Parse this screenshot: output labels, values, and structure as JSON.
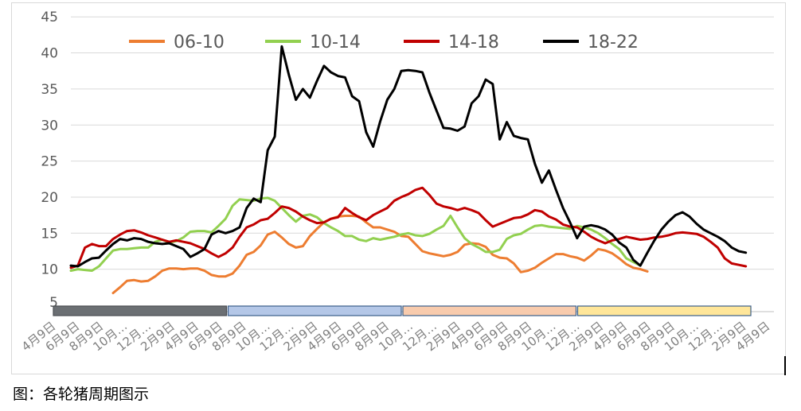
{
  "caption": "图：各轮猪周期图示",
  "chart_data": {
    "type": "line",
    "ylim": [
      5,
      45
    ],
    "y_ticks": [
      10,
      15,
      20,
      25,
      30,
      35,
      40,
      45
    ],
    "y_tick_labels": [
      "10",
      "15",
      "20",
      "25",
      "30",
      "35",
      "40",
      "45"
    ],
    "y_tick_partial": "5",
    "x_count": 101,
    "x_tick_labels": [
      "4月9日",
      "6月9日",
      "8月9日",
      "10月…",
      "12月…",
      "2月9日",
      "4月9日",
      "6月9日",
      "8月9日",
      "10月…",
      "12月…",
      "2月9日",
      "4月9日",
      "6月9日",
      "8月9日",
      "10月…",
      "12月…",
      "2月9日",
      "4月9日",
      "6月9日",
      "8月9日",
      "10月…",
      "12月…",
      "2月9日",
      "4月9日",
      "6月9日",
      "8月9日",
      "10月…",
      "12月…",
      "2月9日",
      "4月9日"
    ],
    "legend_position": "top",
    "colors": {
      "grid": "#d9d9d9",
      "axis": "#bfbfbf"
    },
    "bands": [
      {
        "from": 0,
        "to": 24,
        "fill": "#6b6f73",
        "stroke": "#4a4e52"
      },
      {
        "from": 24,
        "to": 48,
        "fill": "#b4c7e7",
        "stroke": "#3b5f8a"
      },
      {
        "from": 48,
        "to": 72,
        "fill": "#f8cbad",
        "stroke": "#3b5f8a"
      },
      {
        "from": 72,
        "to": 96,
        "fill": "#ffe699",
        "stroke": "#3b5f8a"
      }
    ],
    "series": [
      {
        "name": "06-10",
        "color": "#ed7d31",
        "start": 6,
        "values": [
          6.7,
          7.5,
          8.4,
          8.5,
          8.3,
          8.4,
          9,
          9.8,
          10.1,
          10.1,
          10,
          10.1,
          10.1,
          9.8,
          9.2,
          9,
          9,
          9.4,
          10.5,
          12,
          12.4,
          13.3,
          14.8,
          15.2,
          14.4,
          13.5,
          13,
          13.2,
          14.6,
          15.6,
          16.5,
          17,
          17.3,
          17.4,
          17.4,
          17.3,
          16.5,
          15.8,
          15.8,
          15.5,
          15.2,
          14.6,
          14.5,
          13.5,
          12.5,
          12.2,
          12,
          11.8,
          12,
          12.4,
          13.4,
          13.6,
          13.5,
          13.1,
          12,
          11.6,
          11.5,
          10.8,
          9.6,
          9.8,
          10.2,
          10.9,
          11.5,
          12.1,
          12.1,
          11.8,
          11.6,
          11.2,
          11.9,
          12.8,
          12.6,
          12.2,
          11.5,
          10.7,
          10.2,
          10,
          9.7
        ]
      },
      {
        "name": "10-14",
        "color": "#92d050",
        "start": 0,
        "values": [
          9.8,
          10,
          9.9,
          9.8,
          10.4,
          11.5,
          12.6,
          12.8,
          12.8,
          12.9,
          13,
          13,
          13.8,
          14.1,
          13.7,
          13.9,
          14.4,
          15.2,
          15.3,
          15.3,
          15.1,
          16,
          17,
          18.8,
          19.7,
          19.6,
          19.5,
          19.8,
          19.9,
          19.5,
          18.5,
          17.5,
          16.6,
          17.4,
          17.6,
          17.2,
          16.4,
          15.8,
          15.3,
          14.6,
          14.6,
          14.1,
          13.9,
          14.3,
          14.1,
          14.3,
          14.5,
          14.8,
          15,
          14.7,
          14.6,
          14.9,
          15.5,
          16,
          17.4,
          15.8,
          14.3,
          13.5,
          13,
          12.4,
          12.4,
          12.7,
          14.2,
          14.7,
          14.9,
          15.5,
          16,
          16.1,
          15.9,
          15.8,
          15.7,
          15.6,
          16,
          15.8,
          15.5,
          15,
          14.3,
          13.5,
          12.8,
          11.5,
          11,
          10.5
        ]
      },
      {
        "name": "14-18",
        "color": "#c00000",
        "start": 0,
        "values": [
          10.2,
          10.5,
          13,
          13.5,
          13.2,
          13.2,
          14.2,
          14.8,
          15.3,
          15.4,
          15.1,
          14.7,
          14.4,
          14.1,
          13.8,
          14,
          13.8,
          13.6,
          13.2,
          12.8,
          12.2,
          11.7,
          12.2,
          13,
          14.5,
          15.8,
          16.2,
          16.8,
          17,
          17.8,
          18.7,
          18.5,
          18,
          17.3,
          16.8,
          16.4,
          16.5,
          17,
          17.2,
          18.5,
          17.8,
          17.2,
          16.8,
          17.5,
          18,
          18.5,
          19.5,
          20,
          20.4,
          21,
          21.3,
          20.3,
          19.1,
          18.7,
          18.5,
          18.2,
          18.5,
          18.2,
          17.8,
          16.8,
          15.9,
          16.3,
          16.7,
          17.1,
          17.2,
          17.6,
          18.2,
          18,
          17.3,
          16.9,
          16.2,
          15.9,
          15.8,
          15.2,
          14.5,
          14,
          13.6,
          14,
          14.2,
          14.5,
          14.3,
          14.1,
          14.2,
          14.4,
          14.5,
          14.7,
          15,
          15.1,
          15,
          14.9,
          14.5,
          13.8,
          13,
          11.5,
          10.8,
          10.6,
          10.4
        ]
      },
      {
        "name": "18-22",
        "color": "#000000",
        "start": 0,
        "values": [
          10.5,
          10.4,
          11,
          11.5,
          11.6,
          12.6,
          13.5,
          14.2,
          14,
          14.3,
          14.2,
          13.8,
          13.6,
          13.5,
          13.6,
          13.2,
          12.8,
          11.7,
          12.2,
          12.8,
          14.8,
          15.3,
          15,
          15.3,
          15.8,
          18.5,
          19.8,
          19.3,
          26.5,
          28.4,
          40.9,
          37,
          33.5,
          35,
          33.8,
          36.1,
          38.2,
          37.3,
          36.8,
          36.6,
          34,
          33.3,
          29,
          27,
          30.5,
          33.5,
          35,
          37.5,
          37.6,
          37.5,
          37.3,
          34.5,
          32,
          29.6,
          29.5,
          29.2,
          29.8,
          33,
          34,
          36.3,
          35.7,
          28,
          30.4,
          28.5,
          28.2,
          28,
          24.6,
          22,
          23.7,
          21,
          18.5,
          16.5,
          14.3,
          15.9,
          16.1,
          15.9,
          15.5,
          14.8,
          13.7,
          13,
          11.3,
          10.5,
          12.3,
          14,
          15.5,
          16.6,
          17.5,
          17.9,
          17.3,
          16.3,
          15.5,
          15,
          14.5,
          13.9,
          13,
          12.5,
          12.3
        ]
      }
    ]
  }
}
